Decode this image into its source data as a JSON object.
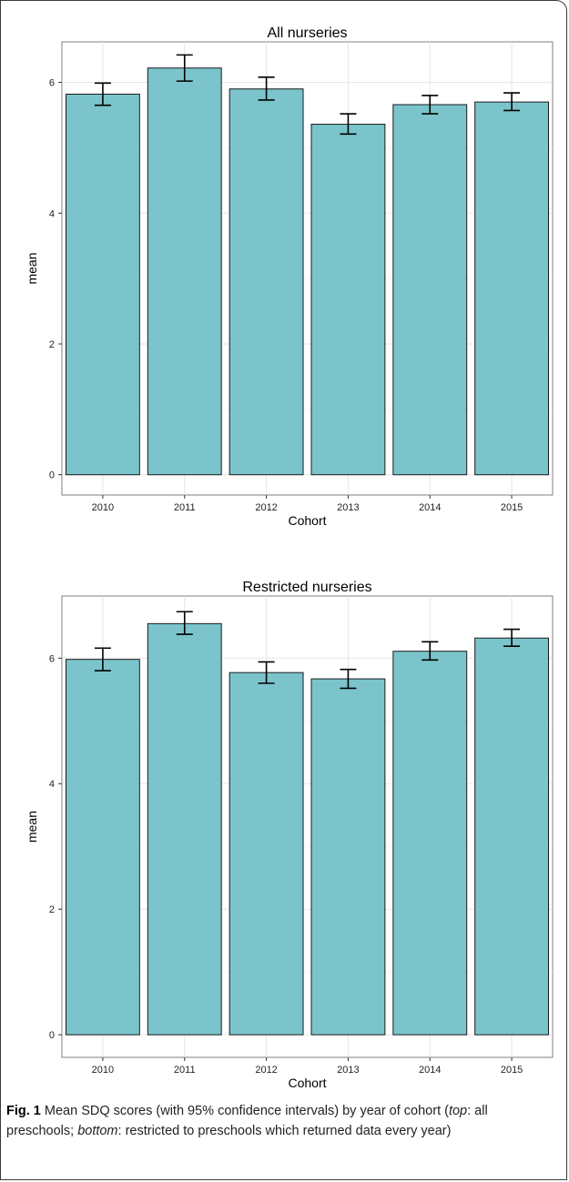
{
  "chart_data": [
    {
      "type": "bar",
      "title": "All nurseries",
      "xlabel": "Cohort",
      "ylabel": "mean",
      "categories": [
        "2010",
        "2011",
        "2012",
        "2013",
        "2014",
        "2015"
      ],
      "values": [
        5.82,
        6.22,
        5.9,
        5.36,
        5.66,
        5.7
      ],
      "ci_low": [
        5.65,
        6.02,
        5.73,
        5.21,
        5.52,
        5.57
      ],
      "ci_high": [
        5.99,
        6.42,
        6.08,
        5.52,
        5.8,
        5.84
      ],
      "yticks": [
        "0",
        "2",
        "4",
        "6"
      ],
      "ylim": [
        -0.31,
        6.62
      ],
      "grid": true,
      "bar_color": "#7bc4cc"
    },
    {
      "type": "bar",
      "title": "Restricted nurseries",
      "xlabel": "Cohort",
      "ylabel": "mean",
      "categories": [
        "2010",
        "2011",
        "2012",
        "2013",
        "2014",
        "2015"
      ],
      "values": [
        5.98,
        6.55,
        5.77,
        5.67,
        6.11,
        6.32
      ],
      "ci_low": [
        5.8,
        6.38,
        5.6,
        5.52,
        5.97,
        6.19
      ],
      "ci_high": [
        6.16,
        6.74,
        5.94,
        5.82,
        6.26,
        6.46
      ],
      "yticks": [
        "0",
        "2",
        "4",
        "6"
      ],
      "ylim": [
        -0.36,
        6.99
      ],
      "grid": true,
      "bar_color": "#7bc4cc"
    }
  ],
  "caption": {
    "label": "Fig. 1",
    "t1": " Mean SDQ scores (with 95% confidence intervals) by year of cohort (",
    "top": "top",
    "t2": ": all preschools; ",
    "bottom": "bottom",
    "t3": ": restricted to preschools which returned data every year)"
  }
}
